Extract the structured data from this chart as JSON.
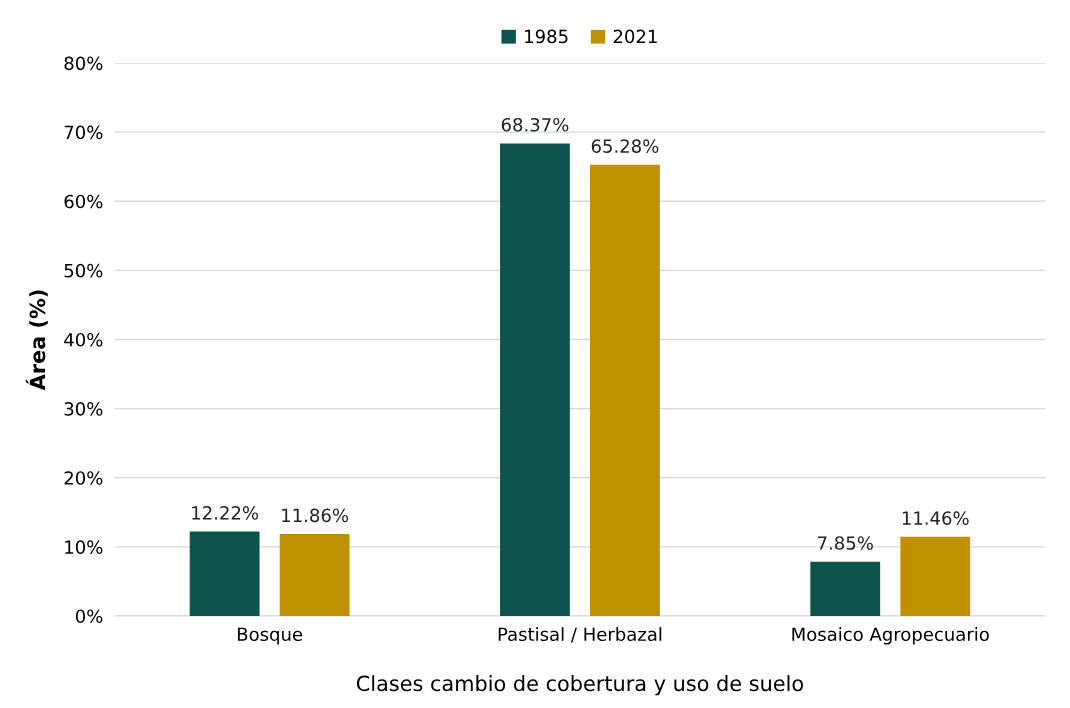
{
  "chart_data": {
    "type": "bar",
    "xlabel": "Clases cambio de cobertura y uso de suelo",
    "ylabel": "Área (%)",
    "categories": [
      "Bosque",
      "Pastisal / Herbazal",
      "Mosaico Agropecuario"
    ],
    "series": [
      {
        "name": "1985",
        "color": "#0e544e",
        "values": [
          12.22,
          68.37,
          7.85
        ],
        "value_labels": [
          "12.22%",
          "68.37%",
          "7.85%"
        ]
      },
      {
        "name": "2021",
        "color": "#bf9000",
        "values": [
          11.86,
          65.28,
          11.46
        ],
        "value_labels": [
          "11.86%",
          "65.28%",
          "11.46%"
        ]
      }
    ],
    "ylim": [
      0,
      80
    ],
    "yticks": [
      {
        "value": 0,
        "label": "0%"
      },
      {
        "value": 10,
        "label": "10%"
      },
      {
        "value": 20,
        "label": "20%"
      },
      {
        "value": 30,
        "label": "30%"
      },
      {
        "value": 40,
        "label": "40%"
      },
      {
        "value": 50,
        "label": "50%"
      },
      {
        "value": 60,
        "label": "60%"
      },
      {
        "value": 70,
        "label": "70%"
      },
      {
        "value": 80,
        "label": "80%"
      }
    ],
    "grid": "y",
    "legend": "top"
  }
}
